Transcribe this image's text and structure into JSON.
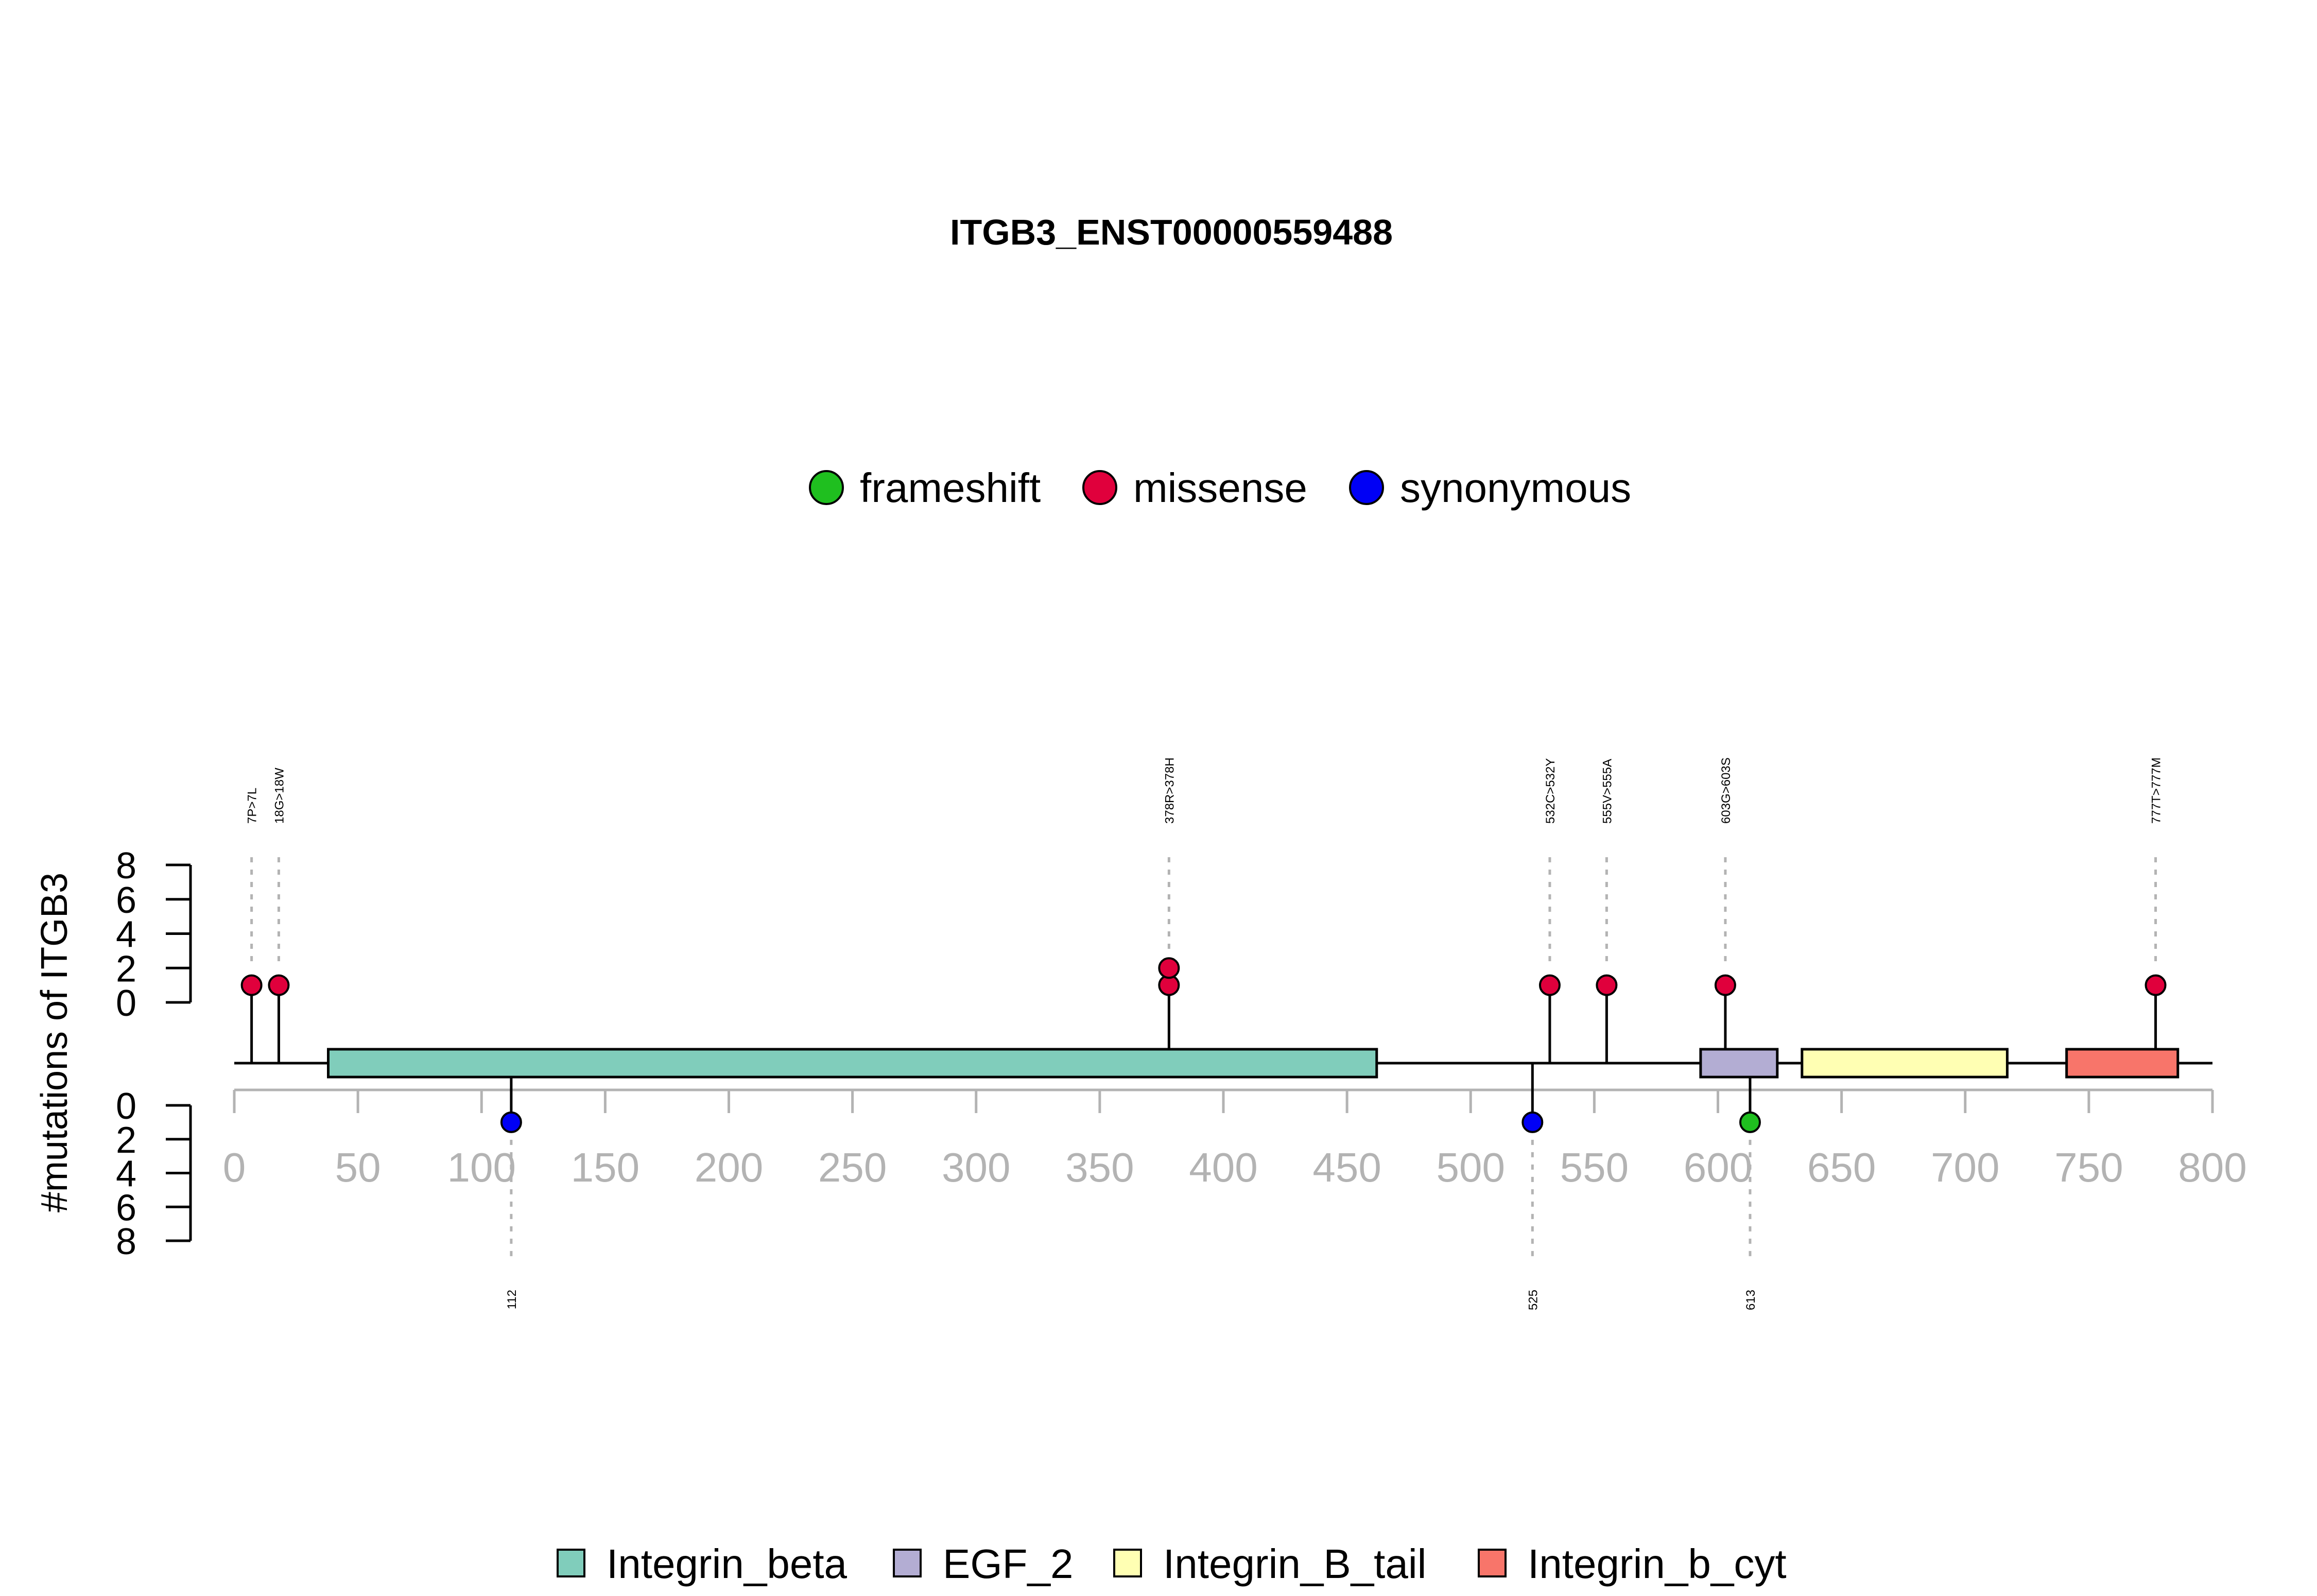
{
  "chart_data": {
    "type": "lollipop",
    "title": "ITGB3_ENST00000559488",
    "ylabel": "#mutations of ITGB3",
    "xlim": [
      0,
      800
    ],
    "x_ticks": [
      "0",
      "50",
      "100",
      "150",
      "200",
      "250",
      "300",
      "350",
      "400",
      "450",
      "500",
      "550",
      "600",
      "650",
      "700",
      "750",
      "800"
    ],
    "y_ticks": [
      "0",
      "2",
      "4",
      "6",
      "8"
    ],
    "mutation_types": [
      {
        "name": "frameshift",
        "color": "#1FBF1F"
      },
      {
        "name": "missense",
        "color": "#E0003C"
      },
      {
        "name": "synonymous",
        "color": "#0000F5"
      }
    ],
    "top_mutations": [
      {
        "position": 7,
        "label": "7P>7L",
        "type": "missense",
        "count": 1
      },
      {
        "position": 18,
        "label": "18G>18W",
        "type": "missense",
        "count": 1
      },
      {
        "position": 378,
        "label": "378R>378H",
        "type": "missense",
        "count": 2
      },
      {
        "position": 532,
        "label": "532C>532Y",
        "type": "missense",
        "count": 1
      },
      {
        "position": 555,
        "label": "555V>555A",
        "type": "missense",
        "count": 1
      },
      {
        "position": 603,
        "label": "603G>603S",
        "type": "missense",
        "count": 1
      },
      {
        "position": 777,
        "label": "777T>777M",
        "type": "missense",
        "count": 1
      }
    ],
    "bottom_mutations": [
      {
        "position": 112,
        "label": "112",
        "type": "synonymous",
        "count": 1
      },
      {
        "position": 525,
        "label": "525",
        "type": "synonymous",
        "count": 1
      },
      {
        "position": 613,
        "label": "613",
        "type": "frameshift",
        "count": 1
      }
    ],
    "domains": [
      {
        "name": "Integrin_beta",
        "start": 38,
        "end": 462,
        "color": "#80CDBB"
      },
      {
        "name": "EGF_2",
        "start": 593,
        "end": 624,
        "color": "#B3ADD3"
      },
      {
        "name": "Integrin_B_tail",
        "start": 634,
        "end": 717,
        "color": "#FFFFB3"
      },
      {
        "name": "Integrin_b_cyt",
        "start": 741,
        "end": 786,
        "color": "#F8756A"
      }
    ]
  }
}
